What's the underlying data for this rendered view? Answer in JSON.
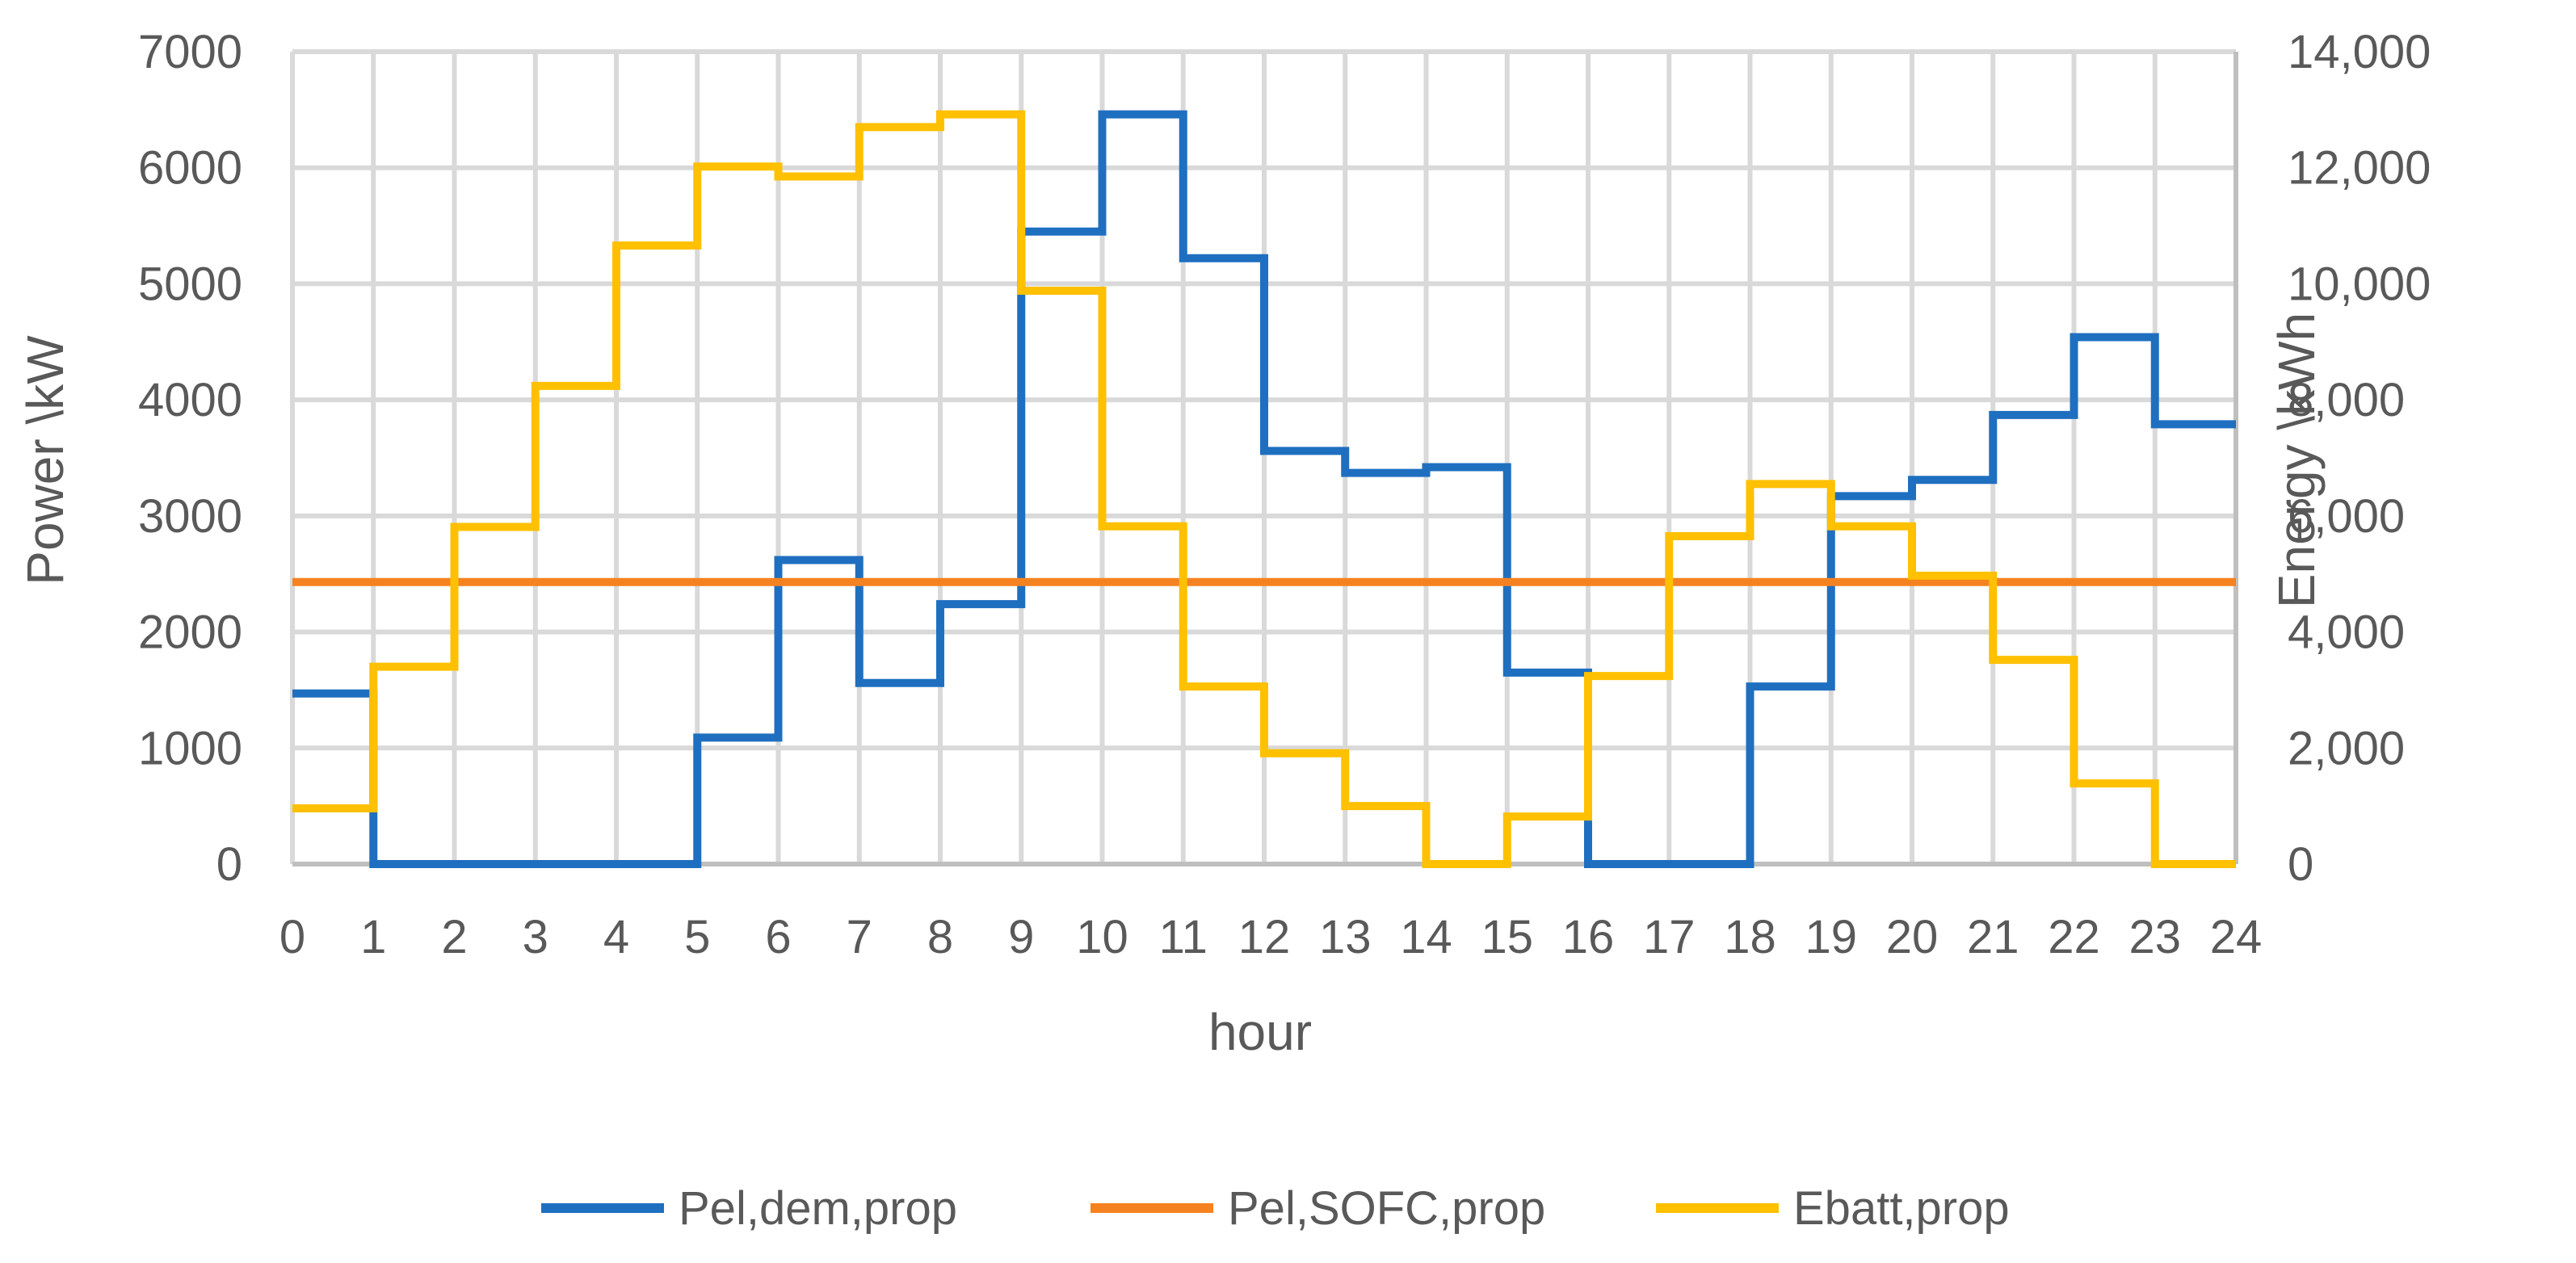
{
  "chart_data": {
    "type": "line",
    "step": true,
    "xlabel": "hour",
    "ylabel": "Power \\kW",
    "y2label": "Energy \\kWh",
    "xlim": [
      0,
      24
    ],
    "ylim": [
      0,
      7000
    ],
    "y2lim": [
      0,
      14000
    ],
    "x_ticks": [
      "0",
      "1",
      "2",
      "3",
      "4",
      "5",
      "6",
      "7",
      "8",
      "9",
      "10",
      "11",
      "12",
      "13",
      "14",
      "15",
      "16",
      "17",
      "18",
      "19",
      "20",
      "21",
      "22",
      "23",
      "24"
    ],
    "y_ticks": [
      "0",
      "1000",
      "2000",
      "3000",
      "4000",
      "5000",
      "6000",
      "7000"
    ],
    "y2_ticks": [
      "0",
      "2,000",
      "4,000",
      "6,000",
      "8,000",
      "10,000",
      "12,000",
      "14,000"
    ],
    "grid": true,
    "legend_position": "bottom",
    "series": [
      {
        "name": "Pel,dem,prop",
        "axis": "left",
        "color": "#1f6fc0",
        "values": [
          1470,
          0,
          0,
          0,
          0,
          1090,
          2620,
          1560,
          2240,
          5450,
          6460,
          5220,
          3560,
          3370,
          3420,
          1650,
          0,
          0,
          1530,
          3170,
          3310,
          3870,
          4540,
          3790
        ]
      },
      {
        "name": "Pel,SOFC,prop",
        "axis": "left",
        "color": "#f58220",
        "values": [
          2430,
          2430,
          2430,
          2430,
          2430,
          2430,
          2430,
          2430,
          2430,
          2430,
          2430,
          2430,
          2430,
          2430,
          2430,
          2430,
          2430,
          2430,
          2430,
          2430,
          2430,
          2430,
          2430,
          2430
        ]
      },
      {
        "name": "Ebatt,prop",
        "axis": "right",
        "color": "#ffc000",
        "values": [
          960,
          3400,
          5810,
          8240,
          10660,
          12020,
          11850,
          12700,
          12920,
          9880,
          5820,
          3060,
          1910,
          1000,
          0,
          820,
          3240,
          5650,
          6550,
          5820,
          4970,
          3520,
          1390,
          0
        ]
      }
    ]
  }
}
